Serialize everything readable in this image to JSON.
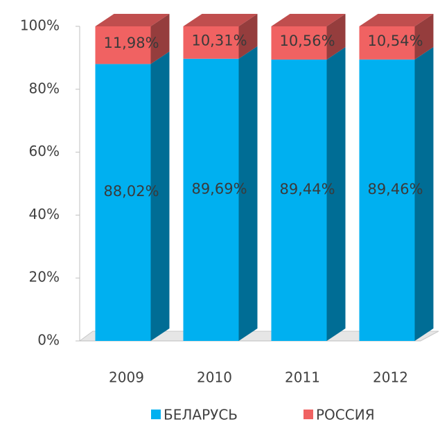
{
  "chart_data": {
    "type": "bar",
    "stacked": true,
    "categories": [
      "2009",
      "2010",
      "2011",
      "2012"
    ],
    "series": [
      {
        "name": "БЕЛАРУСЬ",
        "color": "#00b0f0",
        "values": [
          88.02,
          89.69,
          89.44,
          89.46
        ],
        "value_labels": [
          "88,02%",
          "89,69%",
          "89,44%",
          "89,46%"
        ]
      },
      {
        "name": "РОССИЯ",
        "color": "#f06262",
        "values": [
          11.98,
          10.31,
          10.56,
          10.54
        ],
        "value_labels": [
          "11,98%",
          "10,31%",
          "10,56%",
          "10,54%"
        ]
      }
    ],
    "ylim": [
      0,
      100
    ],
    "yticks": [
      {
        "value": 0,
        "label": "0%"
      },
      {
        "value": 20,
        "label": "20%"
      },
      {
        "value": 40,
        "label": "40%"
      },
      {
        "value": 60,
        "label": "60%"
      },
      {
        "value": 80,
        "label": "80%"
      },
      {
        "value": 100,
        "label": "100%"
      }
    ],
    "legend": "bottom"
  }
}
